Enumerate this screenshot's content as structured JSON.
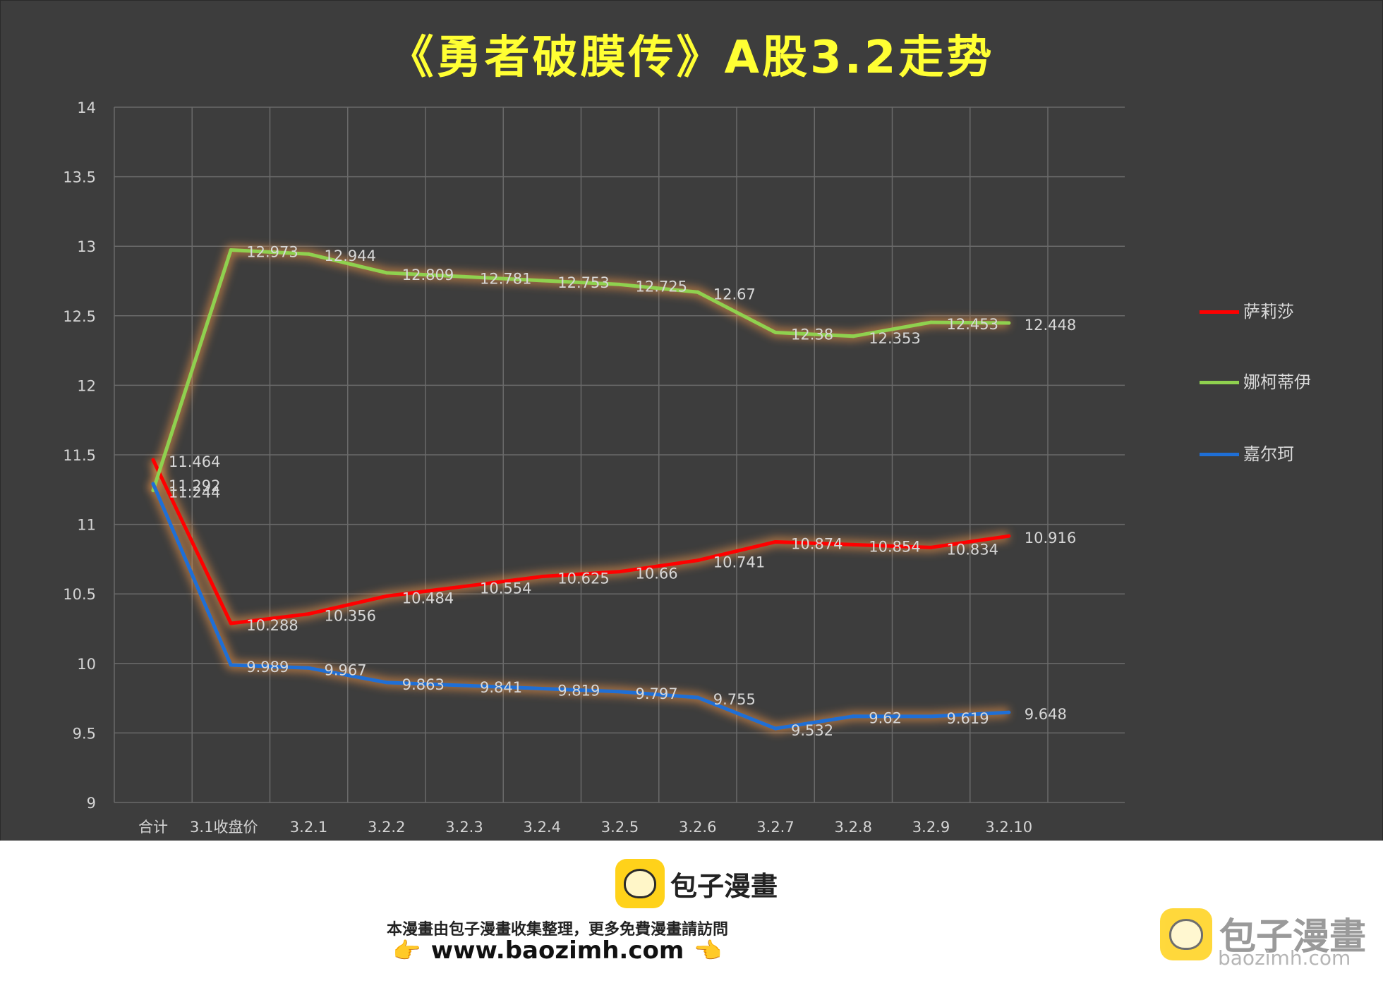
{
  "chart_data": {
    "type": "line",
    "title": "《勇者破膜传》A股3.2走势",
    "xlabel": "",
    "ylabel": "",
    "ylim": [
      9,
      14
    ],
    "yticks": [
      "9",
      "9.5",
      "10",
      "10.5",
      "11",
      "11.5",
      "12",
      "12.5",
      "13",
      "13.5",
      "14"
    ],
    "categories": [
      "合计",
      "3.1收盘价",
      "3.2.1",
      "3.2.2",
      "3.2.3",
      "3.2.4",
      "3.2.5",
      "3.2.6",
      "3.2.7",
      "3.2.8",
      "3.2.9",
      "3.2.10"
    ],
    "grid": true,
    "legend_position": "right",
    "series": [
      {
        "name": "萨莉莎",
        "color": "#ff0000",
        "values": [
          11.464,
          10.288,
          10.356,
          10.484,
          10.554,
          10.625,
          10.66,
          10.741,
          10.874,
          10.854,
          10.834,
          10.916
        ],
        "labels": [
          "11.464",
          "10.288",
          "10.356",
          "10.484",
          "10.554",
          "10.625",
          "10.66",
          "10.741",
          "10.874",
          "10.854",
          "10.834",
          "10.916"
        ]
      },
      {
        "name": "娜柯蒂伊",
        "color": "#8fd14f",
        "values": [
          11.244,
          12.973,
          12.944,
          12.809,
          12.781,
          12.753,
          12.725,
          12.67,
          12.38,
          12.353,
          12.453,
          12.448
        ],
        "labels": [
          "11.244",
          "12.973",
          "12.944",
          "12.809",
          "12.781",
          "12.753",
          "12.725",
          "12.67",
          "12.38",
          "12.353",
          "12.453",
          "12.448"
        ]
      },
      {
        "name": "嘉尔珂",
        "color": "#1f6fd6",
        "values": [
          11.292,
          9.989,
          9.967,
          9.863,
          9.841,
          9.819,
          9.797,
          9.755,
          9.532,
          9.62,
          9.619,
          9.648
        ],
        "labels": [
          "11.292",
          "9.989",
          "9.967",
          "9.863",
          "9.841",
          "9.819",
          "9.797",
          "9.755",
          "9.532",
          "9.62",
          "9.619",
          "9.648"
        ]
      }
    ]
  },
  "footer": {
    "brand": "包子漫畫",
    "note": "本漫畫由包子漫畫收集整理，更多免費漫畫請訪問",
    "url": "www.baozimh.com",
    "hand_left": "👉",
    "hand_right": "👈"
  },
  "watermark": {
    "brand": "包子漫畫",
    "url": "baozimh.com"
  }
}
